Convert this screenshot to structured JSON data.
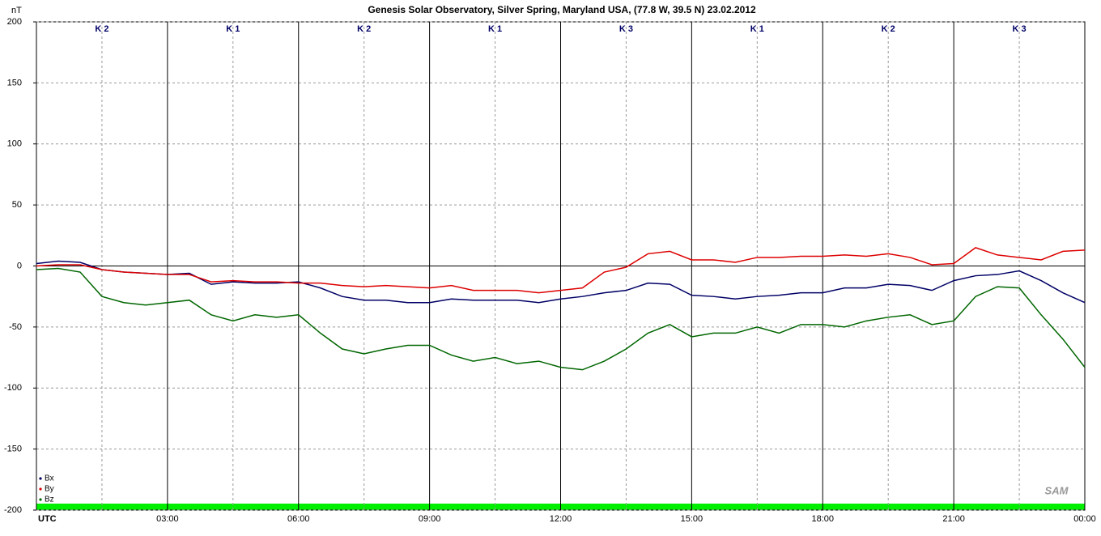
{
  "chart_data": {
    "type": "line",
    "title": "Genesis Solar Observatory, Silver Spring, Maryland USA, (77.8 W, 39.5 N)  23.02.2012",
    "y_label": "nT",
    "logo": "SAM",
    "k_labels": [
      "K 2",
      "K 1",
      "K 2",
      "K 1",
      "K 3",
      "K 1",
      "K 2",
      "K 3"
    ],
    "x": [
      0,
      0.5,
      1,
      1.5,
      2,
      2.5,
      3,
      3.5,
      4,
      4.5,
      5,
      5.5,
      6,
      6.5,
      7,
      7.5,
      8,
      8.5,
      9,
      9.5,
      10,
      10.5,
      11,
      11.5,
      12,
      12.5,
      13,
      13.5,
      14,
      14.5,
      15,
      15.5,
      16,
      16.5,
      17,
      17.5,
      18,
      18.5,
      19,
      19.5,
      20,
      20.5,
      21,
      21.5,
      22,
      22.5,
      23,
      23.5,
      24
    ],
    "series": [
      {
        "name": "Bx",
        "color": "#000066",
        "values": [
          2,
          4,
          3,
          -3,
          -5,
          -6,
          -7,
          -6,
          -15,
          -13,
          -14,
          -14,
          -13,
          -18,
          -25,
          -28,
          -28,
          -30,
          -30,
          -27,
          -28,
          -28,
          -28,
          -30,
          -27,
          -25,
          -22,
          -20,
          -14,
          -15,
          -24,
          -25,
          -27,
          -25,
          -24,
          -22,
          -22,
          -18,
          -18,
          -15,
          -16,
          -20,
          -12,
          -8,
          -7,
          -4,
          -12,
          -22,
          -30
        ]
      },
      {
        "name": "By",
        "color": "#dd0000",
        "values": [
          0,
          1,
          1,
          -3,
          -5,
          -6,
          -7,
          -7,
          -13,
          -12,
          -13,
          -13,
          -14,
          -14,
          -16,
          -17,
          -16,
          -17,
          -18,
          -16,
          -20,
          -20,
          -20,
          -22,
          -20,
          -18,
          -5,
          -1,
          10,
          12,
          5,
          5,
          3,
          7,
          7,
          8,
          8,
          9,
          8,
          10,
          7,
          1,
          2,
          15,
          9,
          7,
          5,
          12,
          13
        ]
      },
      {
        "name": "Bz",
        "color": "#006600",
        "values": [
          -3,
          -2,
          -5,
          -25,
          -30,
          -32,
          -30,
          -28,
          -40,
          -45,
          -40,
          -42,
          -40,
          -55,
          -68,
          -72,
          -68,
          -65,
          -65,
          -73,
          -78,
          -75,
          -80,
          -78,
          -83,
          -85,
          -78,
          -68,
          -55,
          -48,
          -58,
          -55,
          -55,
          -50,
          -55,
          -48,
          -48,
          -50,
          -45,
          -42,
          -40,
          -48,
          -45,
          -25,
          -17,
          -18,
          -40,
          -60,
          -83
        ]
      }
    ],
    "xlim": [
      0,
      24
    ],
    "xticks": [
      {
        "value": 0,
        "label": "UTC"
      },
      {
        "value": 3,
        "label": "03:00"
      },
      {
        "value": 6,
        "label": "06:00"
      },
      {
        "value": 9,
        "label": "09:00"
      },
      {
        "value": 12,
        "label": "12:00"
      },
      {
        "value": 15,
        "label": "15:00"
      },
      {
        "value": 18,
        "label": "18:00"
      },
      {
        "value": 21,
        "label": "21:00"
      },
      {
        "value": 24,
        "label": "00:00"
      }
    ],
    "ylim": [
      -200,
      200
    ],
    "yticks": [
      -200,
      -150,
      -100,
      -50,
      0,
      50,
      100,
      150,
      200
    ],
    "grid": true
  }
}
